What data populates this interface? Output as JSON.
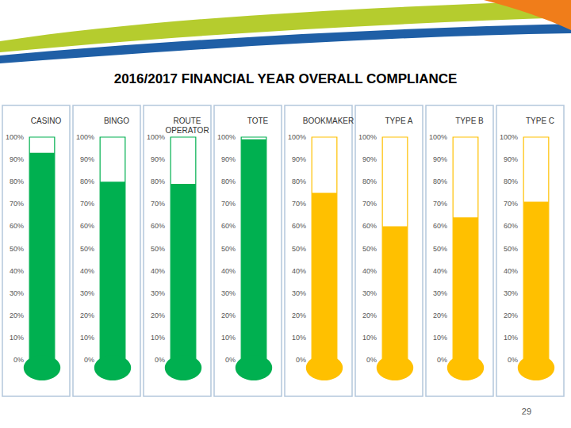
{
  "chart_data": {
    "type": "bar",
    "title": "2016/2017 FINANCIAL YEAR OVERALL COMPLIANCE",
    "categories": [
      "CASINO",
      "BINGO",
      "ROUTE OPERATOR",
      "TOTE",
      "BOOKMAKER",
      "TYPE A",
      "TYPE B",
      "TYPE C"
    ],
    "values": [
      93,
      80,
      79,
      99,
      75,
      60,
      64,
      71
    ],
    "colors": [
      "#00b050",
      "#00b050",
      "#00b050",
      "#00b050",
      "#ffc000",
      "#ffc000",
      "#ffc000",
      "#ffc000"
    ],
    "ylim": [
      0,
      100
    ],
    "yticks": [
      {
        "value": 0,
        "label": "0%"
      },
      {
        "value": 10,
        "label": "10%"
      },
      {
        "value": 20,
        "label": "20%"
      },
      {
        "value": 30,
        "label": "30%"
      },
      {
        "value": 40,
        "label": "40%"
      },
      {
        "value": 50,
        "label": "50%"
      },
      {
        "value": 60,
        "label": "60%"
      },
      {
        "value": 70,
        "label": "70%"
      },
      {
        "value": 80,
        "label": "80%"
      },
      {
        "value": 90,
        "label": "90%"
      },
      {
        "value": 100,
        "label": "100%"
      }
    ],
    "grid": false,
    "annotations": [
      "29"
    ]
  }
}
